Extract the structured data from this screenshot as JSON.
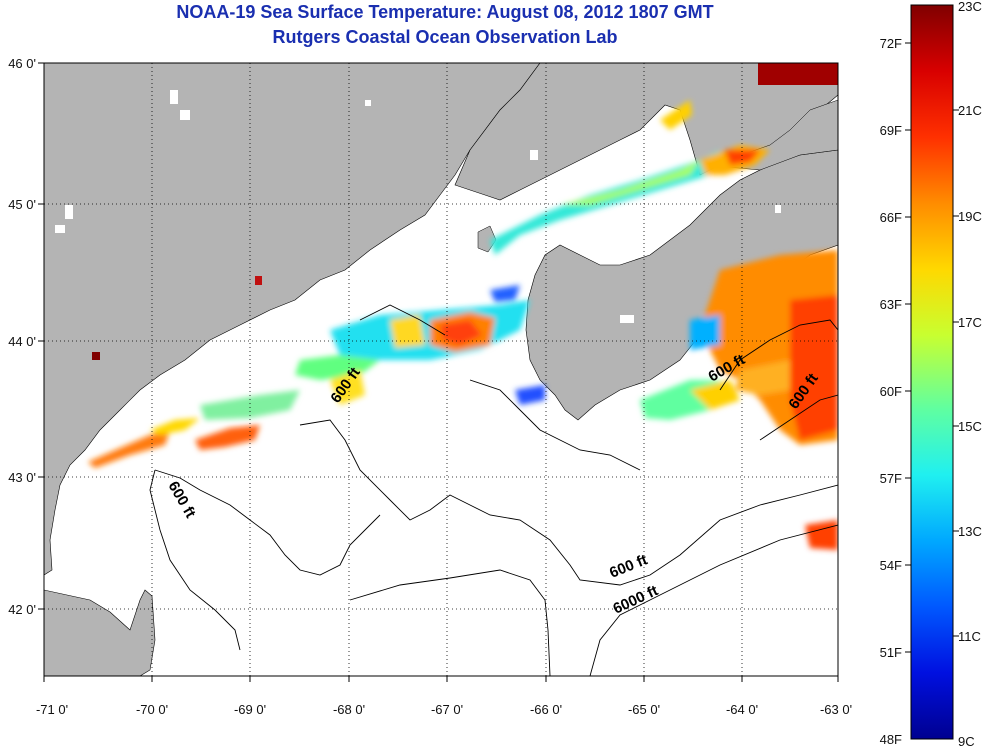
{
  "header": {
    "title_line1": "NOAA-19 Sea Surface Temperature:  August 08, 2012 1807 GMT",
    "title_line2": "Rutgers Coastal Ocean Observation Lab"
  },
  "map": {
    "longitude_labels": [
      "-71 0'",
      "-70 0'",
      "-69 0'",
      "-68 0'",
      "-67 0'",
      "-66 0'",
      "-65 0'",
      "-64 0'",
      "-63 0'"
    ],
    "latitude_labels": [
      "46 0'",
      "45 0'",
      "44 0'",
      "43 0'",
      "42 0'"
    ],
    "contour_labels": [
      "600 ft",
      "600 ft",
      "600 ft",
      "600 ft",
      "600 ft",
      "6000 ft"
    ],
    "colors": {
      "land": "#b4b4b4",
      "water_no_data": "#ffffff",
      "grid": "#000000"
    }
  },
  "colorbar": {
    "fahrenheit_labels": [
      "72F",
      "69F",
      "66F",
      "63F",
      "60F",
      "57F",
      "54F",
      "51F",
      "48F"
    ],
    "celsius_labels": [
      "23C",
      "21C",
      "19C",
      "17C",
      "15C",
      "13C",
      "11C",
      "9C"
    ],
    "colors": [
      "#800000",
      "#d80000",
      "#ff3000",
      "#ff8c00",
      "#ffd800",
      "#e0ff20",
      "#80ff80",
      "#20ffe0",
      "#00b0ff",
      "#0060ff",
      "#0010e0",
      "#000090"
    ]
  }
}
